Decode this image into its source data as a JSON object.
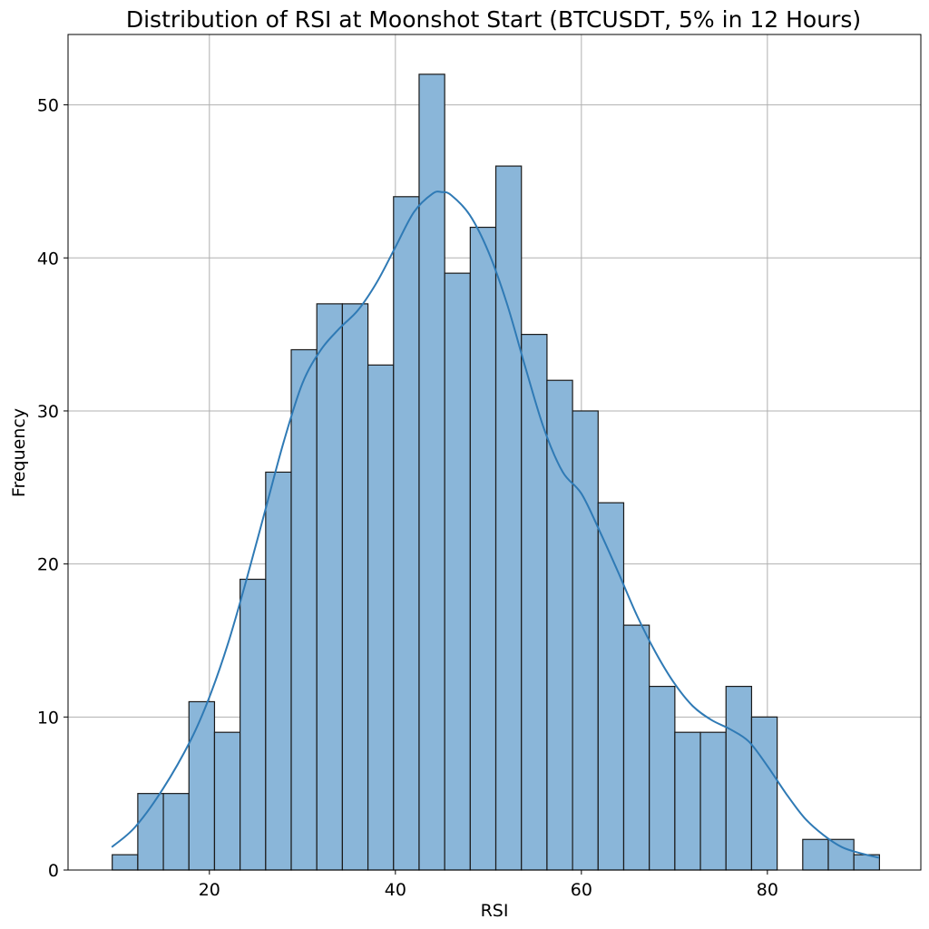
{
  "chart_data": {
    "type": "bar",
    "title": "Distribution of RSI at Moonshot Start (BTCUSDT, 5% in 12 Hours)",
    "xlabel": "RSI",
    "ylabel": "Frequency",
    "xlim": [
      4.8,
      96.5
    ],
    "ylim": [
      0,
      54.6
    ],
    "xticks": [
      20,
      40,
      60,
      80
    ],
    "yticks": [
      0,
      10,
      20,
      30,
      40,
      50
    ],
    "grid": true,
    "bins": {
      "start": 9.55,
      "width": 2.75,
      "counts": [
        1,
        5,
        5,
        11,
        9,
        19,
        26,
        34,
        37,
        37,
        33,
        44,
        52,
        39,
        42,
        46,
        35,
        32,
        30,
        24,
        16,
        12,
        9,
        9,
        12,
        10,
        0,
        2,
        2,
        1
      ]
    },
    "kde": {
      "x": [
        9.5,
        12,
        15,
        18,
        20,
        22,
        24,
        26,
        28,
        30,
        32,
        34,
        36,
        38,
        40,
        42,
        44,
        45,
        46,
        48,
        50,
        52,
        54,
        56,
        58,
        60,
        62,
        64,
        66,
        68,
        70,
        72,
        74,
        76,
        78,
        80,
        82,
        84,
        86,
        88,
        90,
        92
      ],
      "y": [
        1.5,
        2.8,
        5.3,
        8.5,
        11.3,
        14.8,
        19.0,
        23.5,
        28.0,
        31.8,
        34.0,
        35.4,
        36.6,
        38.4,
        40.7,
        43.0,
        44.2,
        44.3,
        44.1,
        42.8,
        40.4,
        37.0,
        32.8,
        28.8,
        26.0,
        24.6,
        22.1,
        19.4,
        16.6,
        14.2,
        12.2,
        10.7,
        9.8,
        9.2,
        8.4,
        6.8,
        5.0,
        3.4,
        2.3,
        1.5,
        1.1,
        0.8
      ]
    }
  }
}
